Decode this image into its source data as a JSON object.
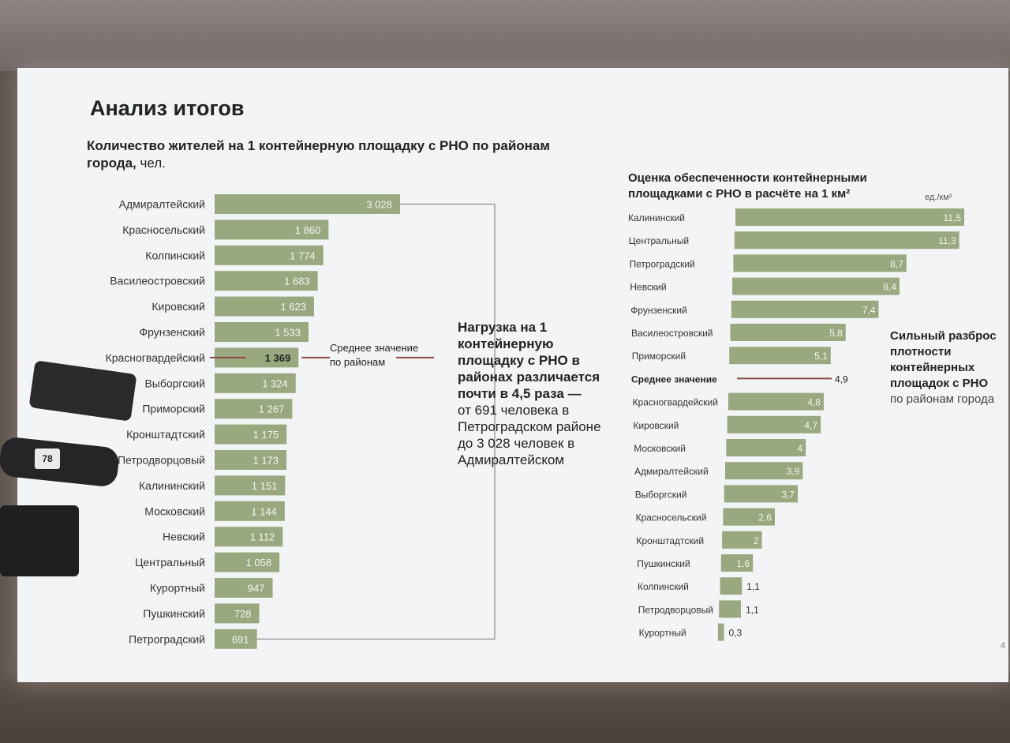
{
  "slide": {
    "title": "Анализ итогов",
    "left_subtitle_bold": "Количество жителей на 1 контейнерную площадку с РНО по районам города,",
    "left_subtitle_unit": " чел.",
    "right_subtitle": "Оценка обеспеченности контейнерными площадками с РНО в расчёте на 1 км²",
    "unit_label": "ед./км²",
    "page_number": "4",
    "annotation_main": {
      "bold": "Нагрузка на 1 контейнерную площадку с РНО в районах различается почти в 4,5 раза —",
      "normal": "от 691 человека в Петроградском районе до 3 028 человек в Адмиралтейском"
    },
    "annotation_right": {
      "bold": "Сильный разброс плотности контейнерных площадок с РНО",
      "normal": "по районам города"
    },
    "mic_logo": "78"
  },
  "chart_data": [
    {
      "type": "bar",
      "orientation": "horizontal",
      "title": "Количество жителей на 1 контейнерную площадку с РНО по районам города, чел.",
      "categories": [
        "Адмиралтейский",
        "Красносельский",
        "Колпинский",
        "Василеостровский",
        "Кировский",
        "Фрунзенский",
        "Красногвардейский",
        "Выборгский",
        "Приморский",
        "Кронштадтский",
        "Петродворцовый",
        "Калининский",
        "Московский",
        "Невский",
        "Центральный",
        "Курортный",
        "Пушкинский",
        "Петроградский"
      ],
      "values": [
        3028,
        1860,
        1774,
        1683,
        1623,
        1533,
        1369,
        1324,
        1267,
        1175,
        1173,
        1151,
        1144,
        1112,
        1058,
        947,
        728,
        691
      ],
      "value_labels": [
        "3 028",
        "1 860",
        "1 774",
        "1 683",
        "1 623",
        "1 533",
        "1 369",
        "1 324",
        "1 267",
        "1 175",
        "1 173",
        "1 151",
        "1 144",
        "1 112",
        "1 058",
        "947",
        "728",
        "691"
      ],
      "average_label": "Среднее значение по районам",
      "average_value": 1369,
      "bar_color": "#9aa87f"
    },
    {
      "type": "bar",
      "orientation": "horizontal",
      "title": "Оценка обеспеченности контейнерными площадками с РНО в расчёте на 1 км²",
      "unit": "ед./км²",
      "categories": [
        "Калининский",
        "Центральный",
        "Петроградский",
        "Невский",
        "Фрунзенский",
        "Василеостровский",
        "Приморский",
        "Красногвардейский",
        "Кировский",
        "Московский",
        "Адмиралтейский",
        "Выборгский",
        "Красносельский",
        "Кронштадтский",
        "Пушкинский",
        "Колпинский",
        "Петродворцовый",
        "Курортный"
      ],
      "values": [
        11.5,
        11.3,
        8.7,
        8.4,
        7.4,
        5.8,
        5.1,
        4.8,
        4.7,
        4,
        3.9,
        3.7,
        2.6,
        2,
        1.6,
        1.1,
        1.1,
        0.3
      ],
      "value_labels": [
        "11,5",
        "11,3",
        "8,7",
        "8,4",
        "7,4",
        "5,8",
        "5,1",
        "4,8",
        "4,7",
        "4",
        "3,9",
        "3,7",
        "2,6",
        "2",
        "1,6",
        "1,1",
        "1,1",
        "0,3"
      ],
      "average_label": "Среднее значение",
      "average_value_label": "4,9",
      "average_value": 4.9,
      "bar_color": "#9aa87f"
    }
  ]
}
